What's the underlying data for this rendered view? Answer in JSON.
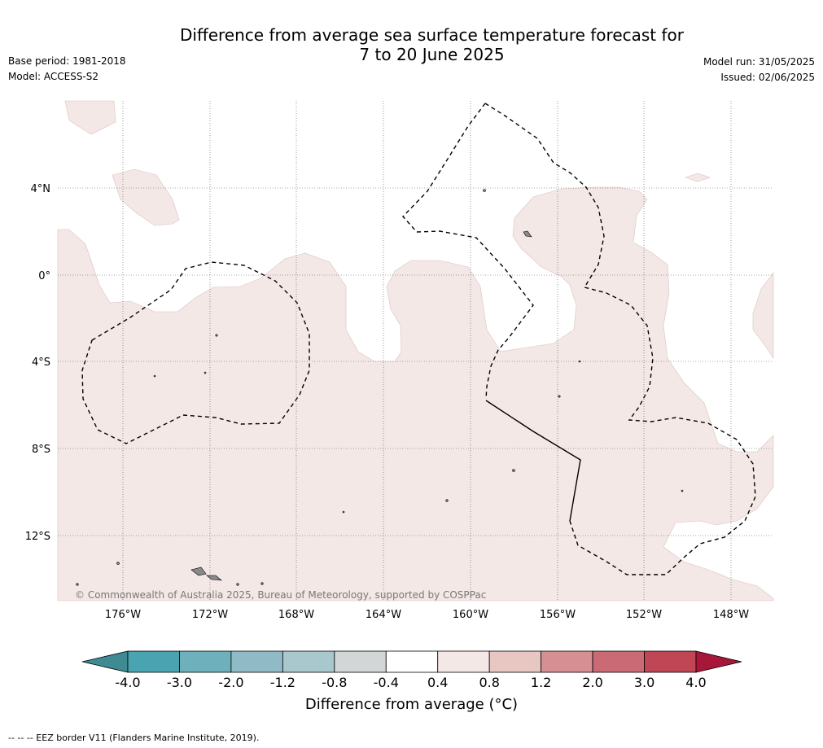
{
  "title_line1": "Difference from average sea surface temperature forecast for",
  "title_line2": "7 to 20 June 2025",
  "base_period": "Base period: 1981-2018",
  "model": "Model: ACCESS-S2",
  "model_run": "Model run: 31/05/2025",
  "issued": "Issued: 02/06/2025",
  "lat_labels": [
    "4°N",
    "0°",
    "4°S",
    "8°S",
    "12°S"
  ],
  "lon_labels": [
    "176°W",
    "172°W",
    "168°W",
    "164°W",
    "160°W",
    "156°W",
    "152°W",
    "148°W"
  ],
  "copyright": "© Commonwealth of Australia 2025, Bureau of Meteorology, supported by COSPPac",
  "colorbar": {
    "ticks": [
      "-4.0",
      "-3.0",
      "-2.0",
      "-1.2",
      "-0.8",
      "-0.4",
      "0.4",
      "0.8",
      "1.2",
      "2.0",
      "3.0",
      "4.0"
    ],
    "colors": [
      "#3f8a93",
      "#4aa3b1",
      "#6fb0bd",
      "#8fbac6",
      "#a9c8ce",
      "#d3d6d7",
      "#ffffff",
      "#f4e8e6",
      "#e8c6c1",
      "#d69094",
      "#c96a74",
      "#c04555",
      "#a8163a"
    ],
    "label": "Difference from average (°C)"
  },
  "eez_note": "--  --  -- EEZ border V11 (Flanders Marine Institute, 2019).",
  "map_colors": {
    "anomaly_fill": "#f4e8e6",
    "ocean": "#ffffff",
    "land": "#8a8a8a"
  }
}
